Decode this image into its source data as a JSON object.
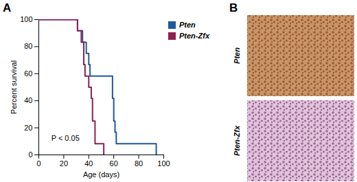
{
  "chart_data": {
    "type": "line",
    "title": "A",
    "x_label": "Age (days)",
    "y_label": "Percent survival",
    "xlim": [
      0,
      100
    ],
    "xticks": [
      0,
      20,
      40,
      60,
      80,
      100
    ],
    "ylim": [
      0,
      100
    ],
    "yticks": [
      0,
      20,
      40,
      60,
      80,
      100
    ],
    "grid": false,
    "line_style": "step",
    "legend": "top-right",
    "annotations": [
      {
        "text": "P < 0.05",
        "x": 10,
        "y": 12
      }
    ],
    "series": [
      {
        "name": "Pten",
        "color": "#1c5a9e",
        "x": [
          0,
          31,
          35,
          38,
          40,
          41,
          59,
          60,
          61,
          62,
          94
        ],
        "values": [
          100,
          91.7,
          83.3,
          75,
          66.7,
          58.3,
          41.7,
          25,
          16.7,
          8.3,
          0
        ]
      },
      {
        "name": "Pten-Zfx",
        "color": "#8e1f52",
        "x": [
          0,
          31,
          34,
          36,
          37,
          40,
          42,
          43,
          45,
          52
        ],
        "values": [
          100,
          91.7,
          83.3,
          66.7,
          58.3,
          50,
          41.7,
          25,
          8.3,
          0
        ]
      }
    ]
  },
  "panel_b": {
    "title": "B",
    "images": [
      {
        "label": "Pten"
      },
      {
        "label": "Pten-Zfx"
      }
    ]
  }
}
